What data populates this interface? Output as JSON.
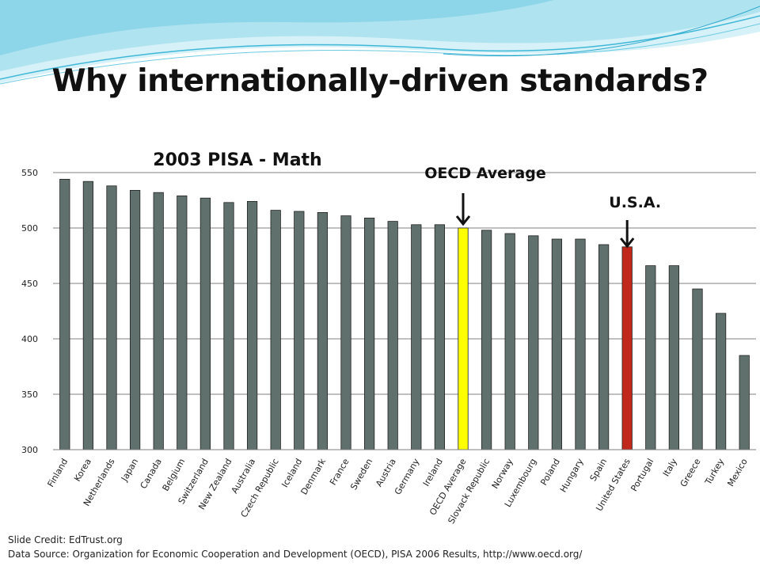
{
  "slide": {
    "title": "Why internationally-driven standards?",
    "credit": "Slide Credit: EdTrust.org",
    "source": "Data Source: Organization for Economic Cooperation and Development (OECD), PISA 2006 Results, http://www.oecd.org/"
  },
  "colors": {
    "bar_default": "#5f706d",
    "bar_oecd": "#ffff00",
    "bar_usa": "#c0281c",
    "grid": "#808080",
    "wave_light": "#bfe9f5",
    "wave_accent": "#3fb8d8"
  },
  "chart_data": {
    "type": "bar",
    "title": "2003 PISA - Math",
    "ylim": [
      300,
      550
    ],
    "yticks": [
      300,
      350,
      400,
      450,
      500,
      550
    ],
    "grid": true,
    "categories": [
      "Finland",
      "Korea",
      "Netherlands",
      "Japan",
      "Canada",
      "Belgium",
      "Switzerland",
      "New Zealand",
      "Australia",
      "Czech Republic",
      "Iceland",
      "Denmark",
      "France",
      "Sweden",
      "Austria",
      "Germany",
      "Ireland",
      "OECD Average",
      "Slovack Republic",
      "Norway",
      "Luxembourg",
      "Poland",
      "Hungary",
      "Spain",
      "United States",
      "Portugal",
      "Italy",
      "Greece",
      "Turkey",
      "Mexico"
    ],
    "values": [
      544,
      542,
      538,
      534,
      532,
      529,
      527,
      523,
      524,
      516,
      515,
      514,
      511,
      509,
      506,
      503,
      503,
      500,
      498,
      495,
      493,
      490,
      490,
      485,
      483,
      466,
      466,
      445,
      423,
      385
    ],
    "highlights": {
      "OECD Average": "oecd",
      "United States": "usa"
    },
    "annotations": [
      {
        "text": "OECD Average",
        "target": "OECD Average"
      },
      {
        "text": "U.S.A.",
        "target": "United States"
      }
    ]
  }
}
